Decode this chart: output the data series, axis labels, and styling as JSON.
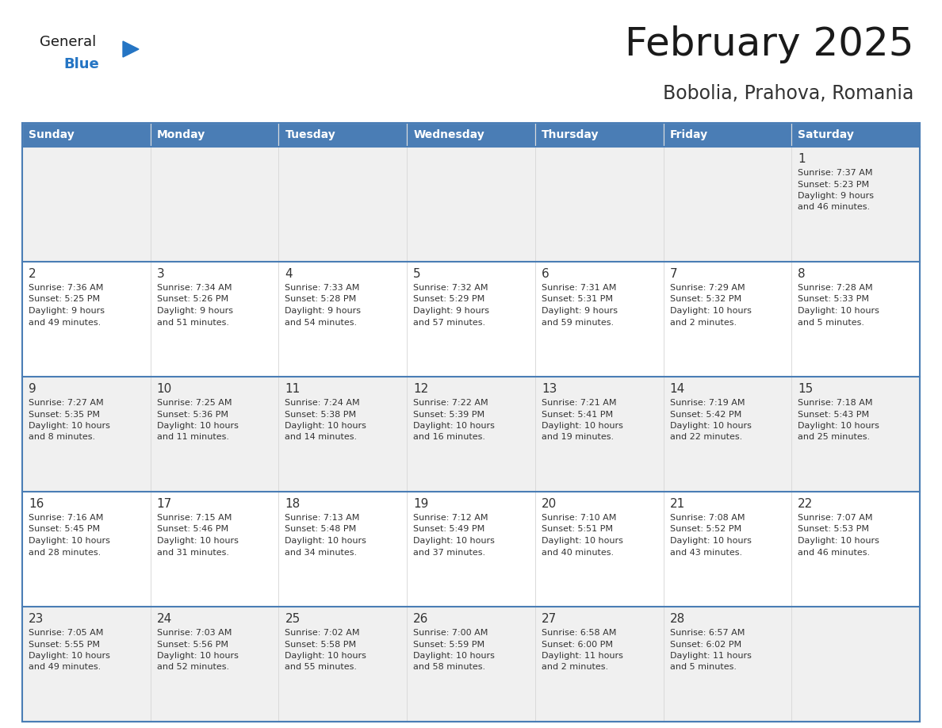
{
  "title": "February 2025",
  "subtitle": "Bobolia, Prahova, Romania",
  "header_bg": "#4A7DB5",
  "header_text": "#FFFFFF",
  "day_names": [
    "Sunday",
    "Monday",
    "Tuesday",
    "Wednesday",
    "Thursday",
    "Friday",
    "Saturday"
  ],
  "row_bg_even": "#F0F0F0",
  "row_bg_odd": "#FFFFFF",
  "border_color": "#4A7DB5",
  "cell_border_color": "#CCCCCC",
  "text_color": "#333333",
  "title_color": "#1a1a1a",
  "subtitle_color": "#333333",
  "logo_general_color": "#1a1a1a",
  "logo_blue_color": "#2575C4",
  "logo_triangle_color": "#2575C4",
  "calendar": [
    [
      null,
      null,
      null,
      null,
      null,
      null,
      {
        "day": "1",
        "sunrise": "7:37 AM",
        "sunset": "5:23 PM",
        "daylight": "9 hours\nand 46 minutes."
      }
    ],
    [
      {
        "day": "2",
        "sunrise": "7:36 AM",
        "sunset": "5:25 PM",
        "daylight": "9 hours\nand 49 minutes."
      },
      {
        "day": "3",
        "sunrise": "7:34 AM",
        "sunset": "5:26 PM",
        "daylight": "9 hours\nand 51 minutes."
      },
      {
        "day": "4",
        "sunrise": "7:33 AM",
        "sunset": "5:28 PM",
        "daylight": "9 hours\nand 54 minutes."
      },
      {
        "day": "5",
        "sunrise": "7:32 AM",
        "sunset": "5:29 PM",
        "daylight": "9 hours\nand 57 minutes."
      },
      {
        "day": "6",
        "sunrise": "7:31 AM",
        "sunset": "5:31 PM",
        "daylight": "9 hours\nand 59 minutes."
      },
      {
        "day": "7",
        "sunrise": "7:29 AM",
        "sunset": "5:32 PM",
        "daylight": "10 hours\nand 2 minutes."
      },
      {
        "day": "8",
        "sunrise": "7:28 AM",
        "sunset": "5:33 PM",
        "daylight": "10 hours\nand 5 minutes."
      }
    ],
    [
      {
        "day": "9",
        "sunrise": "7:27 AM",
        "sunset": "5:35 PM",
        "daylight": "10 hours\nand 8 minutes."
      },
      {
        "day": "10",
        "sunrise": "7:25 AM",
        "sunset": "5:36 PM",
        "daylight": "10 hours\nand 11 minutes."
      },
      {
        "day": "11",
        "sunrise": "7:24 AM",
        "sunset": "5:38 PM",
        "daylight": "10 hours\nand 14 minutes."
      },
      {
        "day": "12",
        "sunrise": "7:22 AM",
        "sunset": "5:39 PM",
        "daylight": "10 hours\nand 16 minutes."
      },
      {
        "day": "13",
        "sunrise": "7:21 AM",
        "sunset": "5:41 PM",
        "daylight": "10 hours\nand 19 minutes."
      },
      {
        "day": "14",
        "sunrise": "7:19 AM",
        "sunset": "5:42 PM",
        "daylight": "10 hours\nand 22 minutes."
      },
      {
        "day": "15",
        "sunrise": "7:18 AM",
        "sunset": "5:43 PM",
        "daylight": "10 hours\nand 25 minutes."
      }
    ],
    [
      {
        "day": "16",
        "sunrise": "7:16 AM",
        "sunset": "5:45 PM",
        "daylight": "10 hours\nand 28 minutes."
      },
      {
        "day": "17",
        "sunrise": "7:15 AM",
        "sunset": "5:46 PM",
        "daylight": "10 hours\nand 31 minutes."
      },
      {
        "day": "18",
        "sunrise": "7:13 AM",
        "sunset": "5:48 PM",
        "daylight": "10 hours\nand 34 minutes."
      },
      {
        "day": "19",
        "sunrise": "7:12 AM",
        "sunset": "5:49 PM",
        "daylight": "10 hours\nand 37 minutes."
      },
      {
        "day": "20",
        "sunrise": "7:10 AM",
        "sunset": "5:51 PM",
        "daylight": "10 hours\nand 40 minutes."
      },
      {
        "day": "21",
        "sunrise": "7:08 AM",
        "sunset": "5:52 PM",
        "daylight": "10 hours\nand 43 minutes."
      },
      {
        "day": "22",
        "sunrise": "7:07 AM",
        "sunset": "5:53 PM",
        "daylight": "10 hours\nand 46 minutes."
      }
    ],
    [
      {
        "day": "23",
        "sunrise": "7:05 AM",
        "sunset": "5:55 PM",
        "daylight": "10 hours\nand 49 minutes."
      },
      {
        "day": "24",
        "sunrise": "7:03 AM",
        "sunset": "5:56 PM",
        "daylight": "10 hours\nand 52 minutes."
      },
      {
        "day": "25",
        "sunrise": "7:02 AM",
        "sunset": "5:58 PM",
        "daylight": "10 hours\nand 55 minutes."
      },
      {
        "day": "26",
        "sunrise": "7:00 AM",
        "sunset": "5:59 PM",
        "daylight": "10 hours\nand 58 minutes."
      },
      {
        "day": "27",
        "sunrise": "6:58 AM",
        "sunset": "6:00 PM",
        "daylight": "11 hours\nand 2 minutes."
      },
      {
        "day": "28",
        "sunrise": "6:57 AM",
        "sunset": "6:02 PM",
        "daylight": "11 hours\nand 5 minutes."
      },
      null
    ]
  ]
}
